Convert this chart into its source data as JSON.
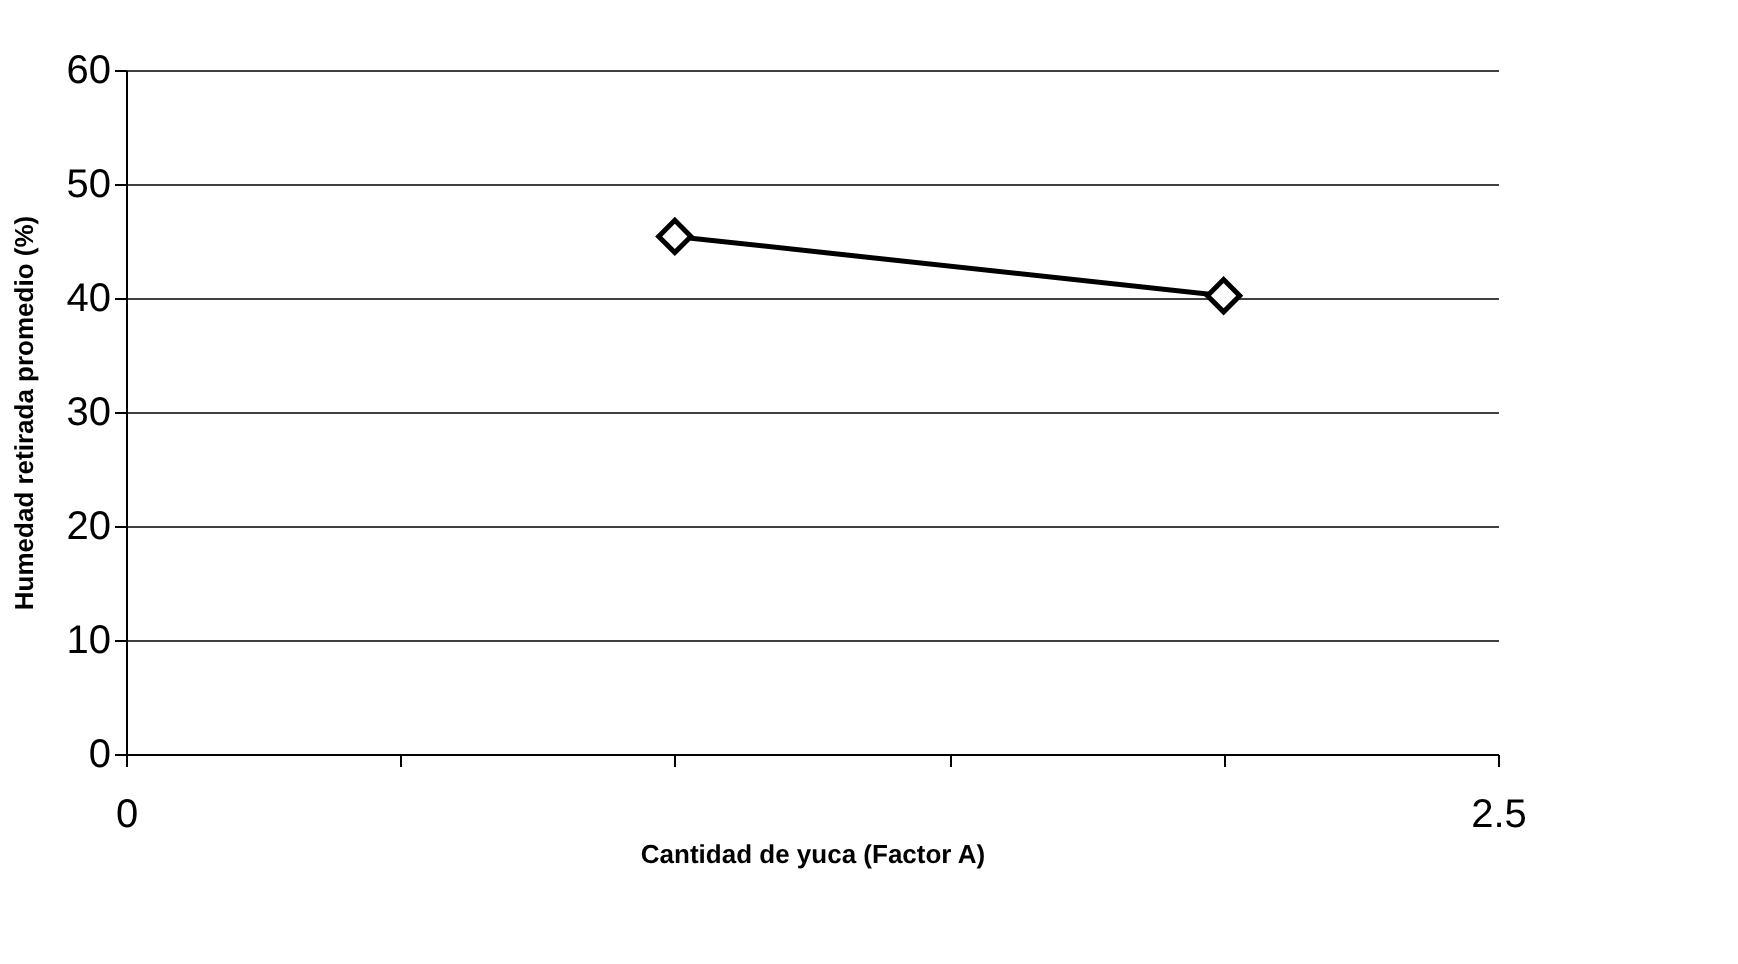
{
  "chart_data": {
    "type": "line",
    "xlabel": "Cantidad de yuca (Factor A)",
    "ylabel": "Humedad retirada promedio (%)",
    "x": [
      1,
      2
    ],
    "series": [
      {
        "color": "#000000",
        "values": [
          45.4,
          40.2
        ]
      }
    ],
    "xlim": [
      0,
      2.5
    ],
    "xticks": [
      0,
      {
        "value": 0.5,
        "label": null
      },
      {
        "value": 1,
        "label": null
      },
      {
        "value": 1.5,
        "label": null
      },
      {
        "value": 2,
        "label": null
      },
      2.5
    ],
    "ylim": [
      0,
      60
    ],
    "yticks": [
      0,
      10,
      20,
      30,
      40,
      50,
      60
    ],
    "grid": "y",
    "marker": "diamond",
    "line_style": "solid"
  }
}
